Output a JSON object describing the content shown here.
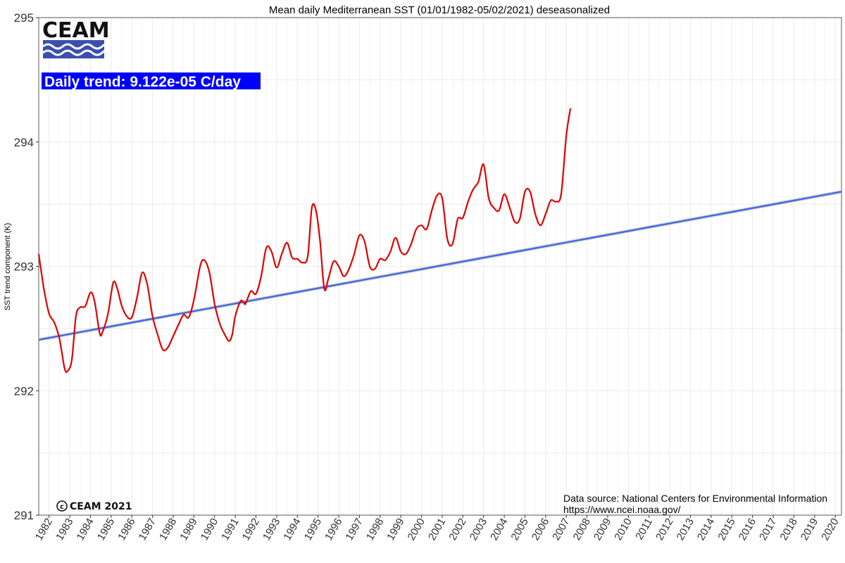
{
  "chart_data": {
    "type": "line",
    "title": "Mean daily Mediterranean SST (01/01/1982-05/02/2021) deseasonalized",
    "xlabel": "",
    "ylabel": "SST trend component (K)",
    "xlim": [
      1981.5,
      2020.3
    ],
    "ylim": [
      291,
      295
    ],
    "yticks": [
      291,
      292,
      293,
      294,
      295
    ],
    "xticks": [
      "1982",
      "1983",
      "1984",
      "1985",
      "1986",
      "1987",
      "1988",
      "1989",
      "1990",
      "1991",
      "1992",
      "1993",
      "1994",
      "1995",
      "1996",
      "1997",
      "1998",
      "1999",
      "2000",
      "2001",
      "2002",
      "2003",
      "2004",
      "2005",
      "2006",
      "2007",
      "2008",
      "2009",
      "2010",
      "2011",
      "2012",
      "2013",
      "2014",
      "2015",
      "2016",
      "2017",
      "2018",
      "2019",
      "2020"
    ],
    "grid": true,
    "colors": {
      "series": "#e00000",
      "trend": "#4169e1",
      "trend_band": "#b0b0b0",
      "trend_label_bg": "#0000ff",
      "grid": "#ebebeb"
    },
    "series": [
      {
        "values": [
          [
            1981.5,
            293.1
          ],
          [
            1981.75,
            292.82
          ],
          [
            1982.0,
            292.62
          ],
          [
            1982.25,
            292.55
          ],
          [
            1982.5,
            292.42
          ],
          [
            1982.75,
            292.18
          ],
          [
            1982.9,
            292.16
          ],
          [
            1983.1,
            292.25
          ],
          [
            1983.3,
            292.6
          ],
          [
            1983.5,
            292.67
          ],
          [
            1983.75,
            292.68
          ],
          [
            1984.0,
            292.79
          ],
          [
            1984.2,
            292.72
          ],
          [
            1984.45,
            292.46
          ],
          [
            1984.6,
            292.48
          ],
          [
            1984.85,
            292.62
          ],
          [
            1985.1,
            292.87
          ],
          [
            1985.3,
            292.82
          ],
          [
            1985.5,
            292.69
          ],
          [
            1985.75,
            292.6
          ],
          [
            1986.0,
            292.59
          ],
          [
            1986.25,
            292.75
          ],
          [
            1986.5,
            292.95
          ],
          [
            1986.75,
            292.85
          ],
          [
            1987.0,
            292.6
          ],
          [
            1987.25,
            292.45
          ],
          [
            1987.5,
            292.33
          ],
          [
            1987.75,
            292.35
          ],
          [
            1988.0,
            292.44
          ],
          [
            1988.25,
            292.53
          ],
          [
            1988.5,
            292.61
          ],
          [
            1988.75,
            292.59
          ],
          [
            1989.0,
            292.73
          ],
          [
            1989.3,
            293.0
          ],
          [
            1989.5,
            293.05
          ],
          [
            1989.75,
            292.95
          ],
          [
            1990.0,
            292.7
          ],
          [
            1990.25,
            292.54
          ],
          [
            1990.5,
            292.45
          ],
          [
            1990.7,
            292.4
          ],
          [
            1990.85,
            292.45
          ],
          [
            1991.0,
            292.6
          ],
          [
            1991.25,
            292.72
          ],
          [
            1991.4,
            292.71
          ],
          [
            1991.5,
            292.7
          ],
          [
            1991.75,
            292.8
          ],
          [
            1992.0,
            292.78
          ],
          [
            1992.25,
            292.92
          ],
          [
            1992.5,
            293.15
          ],
          [
            1992.75,
            293.12
          ],
          [
            1993.0,
            292.99
          ],
          [
            1993.25,
            293.1
          ],
          [
            1993.5,
            293.19
          ],
          [
            1993.75,
            293.07
          ],
          [
            1994.0,
            293.06
          ],
          [
            1994.25,
            293.03
          ],
          [
            1994.5,
            293.08
          ],
          [
            1994.7,
            293.47
          ],
          [
            1994.9,
            293.45
          ],
          [
            1995.1,
            293.2
          ],
          [
            1995.3,
            292.82
          ],
          [
            1995.5,
            292.9
          ],
          [
            1995.75,
            293.04
          ],
          [
            1996.0,
            293.0
          ],
          [
            1996.25,
            292.92
          ],
          [
            1996.5,
            292.98
          ],
          [
            1996.75,
            293.1
          ],
          [
            1997.0,
            293.25
          ],
          [
            1997.25,
            293.2
          ],
          [
            1997.5,
            293.0
          ],
          [
            1997.75,
            292.98
          ],
          [
            1998.0,
            293.06
          ],
          [
            1998.25,
            293.05
          ],
          [
            1998.5,
            293.12
          ],
          [
            1998.75,
            293.23
          ],
          [
            1999.0,
            293.12
          ],
          [
            1999.25,
            293.1
          ],
          [
            1999.5,
            293.18
          ],
          [
            1999.75,
            293.3
          ],
          [
            2000.0,
            293.33
          ],
          [
            2000.25,
            293.3
          ],
          [
            2000.5,
            293.45
          ],
          [
            2000.75,
            293.57
          ],
          [
            2001.0,
            293.55
          ],
          [
            2001.25,
            293.22
          ],
          [
            2001.5,
            293.18
          ],
          [
            2001.75,
            293.38
          ],
          [
            2002.0,
            293.39
          ],
          [
            2002.25,
            293.52
          ],
          [
            2002.5,
            293.62
          ],
          [
            2002.75,
            293.68
          ],
          [
            2003.0,
            293.82
          ],
          [
            2003.25,
            293.55
          ],
          [
            2003.5,
            293.47
          ],
          [
            2003.75,
            293.45
          ],
          [
            2004.0,
            293.58
          ],
          [
            2004.25,
            293.48
          ],
          [
            2004.5,
            293.36
          ],
          [
            2004.75,
            293.38
          ],
          [
            2005.0,
            293.6
          ],
          [
            2005.25,
            293.6
          ],
          [
            2005.5,
            293.42
          ],
          [
            2005.75,
            293.33
          ],
          [
            2006.0,
            293.42
          ],
          [
            2006.25,
            293.53
          ],
          [
            2006.5,
            293.52
          ],
          [
            2006.75,
            293.58
          ],
          [
            2007.0,
            294.05
          ],
          [
            2007.2,
            294.27
          ]
        ]
      }
    ],
    "trend": {
      "label": "Daily trend: 9.122e-05 C/day",
      "start": [
        1981.5,
        292.41
      ],
      "end": [
        2020.3,
        293.6
      ]
    },
    "annotations": {
      "logo": "CEAM",
      "copyright": "CEAM 2021",
      "copyright_symbol": "c",
      "source_line1": "Data source: National Centers for Environmental Information",
      "source_line2": "https://www.ncei.noaa.gov/"
    }
  }
}
